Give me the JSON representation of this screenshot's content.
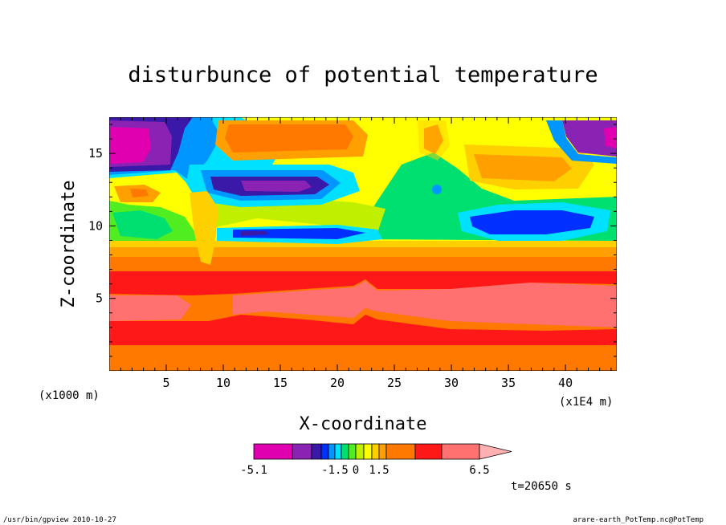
{
  "chart_data": {
    "type": "heatmap",
    "title": "disturbunce of potential temperature",
    "xlabel": "X-coordinate",
    "ylabel": "Z-coordinate",
    "x_unit_left": "(x1000 m)",
    "x_unit_right": "(x1E4 m)",
    "xlim": [
      0,
      44.5
    ],
    "ylim": [
      0,
      17.5
    ],
    "xticks": [
      5,
      10,
      15,
      20,
      25,
      30,
      35,
      40
    ],
    "yticks": [
      5,
      10,
      15
    ],
    "colorbar": {
      "levels": [
        -5.1,
        -4.0,
        -3.0,
        -2.5,
        -2.0,
        -1.5,
        -1.0,
        -0.5,
        0,
        0.5,
        1.0,
        1.5,
        2.0,
        3.0,
        4.5,
        5.5,
        6.5
      ],
      "colors": [
        "#e000b0",
        "#8a22b4",
        "#3a18a8",
        "#0030ff",
        "#0096ff",
        "#00e0ff",
        "#00e070",
        "#50ee20",
        "#c0f000",
        "#ffff00",
        "#ffd000",
        "#ffa000",
        "#ff7800",
        "#ff1818",
        "#ff7070",
        "#ffb0b0"
      ],
      "tick_labels": [
        "-5.1",
        "-1.5",
        "0",
        "1.5",
        "6.5"
      ]
    },
    "grid": false
  },
  "footer": {
    "time_label": "t=20650 s",
    "left": "/usr/bin/gpview   2010-10-27",
    "right": "arare-earth_PotTemp.nc@PotTemp"
  }
}
